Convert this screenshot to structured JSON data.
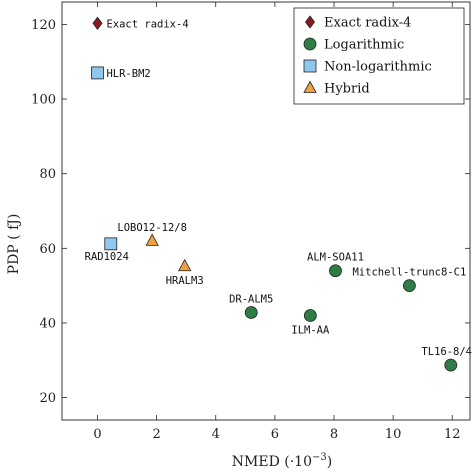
{
  "chart_data": {
    "type": "scatter",
    "xlabel": "NMED (·10",
    "xlabel_exp": "−3",
    "xlabel_close": ")",
    "ylabel": "PDP ( fJ)",
    "xlim": [
      -1.2,
      12.6
    ],
    "ylim": [
      14,
      126
    ],
    "xticks": [
      0,
      2,
      4,
      6,
      8,
      10,
      12
    ],
    "yticks": [
      20,
      40,
      60,
      80,
      100,
      120
    ],
    "grid": false,
    "legend_position": "top-right",
    "series": [
      {
        "name": "Exact radix-4",
        "marker": "diamond",
        "color": "#8b1a1a",
        "points": [
          {
            "x": 0.0,
            "y": 120.3,
            "label": "Exact radix-4",
            "anchor": "right"
          }
        ]
      },
      {
        "name": "Logarithmic",
        "marker": "circle",
        "color": "#2e7d46",
        "points": [
          {
            "x": 5.2,
            "y": 42.8,
            "label": "DR-ALM5",
            "anchor": "top"
          },
          {
            "x": 7.2,
            "y": 42.0,
            "label": "ILM-AA",
            "anchor": "below"
          },
          {
            "x": 8.05,
            "y": 54.0,
            "label": "ALM-SOA11",
            "anchor": "top"
          },
          {
            "x": 10.55,
            "y": 50.0,
            "label": "Mitchell-trunc8-C1",
            "anchor": "top"
          },
          {
            "x": 11.95,
            "y": 28.7,
            "label": "TL16-8/4",
            "anchor": "top"
          }
        ]
      },
      {
        "name": "Non-logarithmic",
        "marker": "square",
        "color": "#8ec8ef",
        "points": [
          {
            "x": 0.0,
            "y": 107.0,
            "label": "HLR-BM2",
            "anchor": "right"
          },
          {
            "x": 0.45,
            "y": 61.2,
            "label": "RAD1024",
            "anchor": "below-left"
          }
        ]
      },
      {
        "name": "Hybrid",
        "marker": "triangle",
        "color": "#f0a040",
        "points": [
          {
            "x": 1.85,
            "y": 62.0,
            "label": "LOBO12-12/8",
            "anchor": "top"
          },
          {
            "x": 2.95,
            "y": 55.2,
            "label": "HRALM3",
            "anchor": "below"
          }
        ]
      }
    ]
  }
}
